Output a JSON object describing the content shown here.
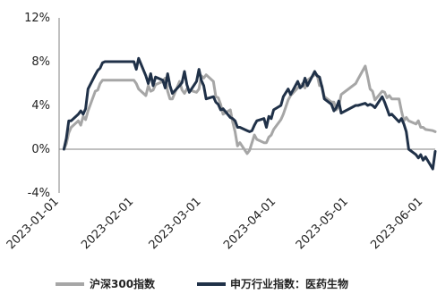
{
  "chart_data": {
    "type": "line",
    "title": "",
    "xlabel": "",
    "ylabel": "",
    "xlim": [
      "2023-01-01",
      "2023-06-06"
    ],
    "ylim": [
      -4,
      12
    ],
    "yticks": [
      -4,
      0,
      4,
      8,
      12
    ],
    "ytick_labels": [
      "-4%",
      "0%",
      "4%",
      "8%",
      "12%"
    ],
    "xticks": [
      "2023-01-01",
      "2023-02-01",
      "2023-03-01",
      "2023-04-01",
      "2023-05-01",
      "2023-06-01"
    ],
    "xtick_labels": [
      "2023-01-01",
      "2023-02-01",
      "2023-03-01",
      "2023-04-01",
      "2023-05-01",
      "2023-06-01"
    ],
    "grid": false,
    "legend_position": "bottom",
    "series": [
      {
        "name": "沪深300指数",
        "color": "#a6a6a6",
        "points": [
          [
            "2023-01-03",
            0.0
          ],
          [
            "2023-01-04",
            0.5
          ],
          [
            "2023-01-05",
            1.5
          ],
          [
            "2023-01-06",
            2.0
          ],
          [
            "2023-01-09",
            2.6
          ],
          [
            "2023-01-10",
            2.2
          ],
          [
            "2023-01-11",
            3.0
          ],
          [
            "2023-01-12",
            2.7
          ],
          [
            "2023-01-13",
            3.5
          ],
          [
            "2023-01-16",
            5.3
          ],
          [
            "2023-01-17",
            5.4
          ],
          [
            "2023-01-18",
            6.0
          ],
          [
            "2023-01-19",
            6.3
          ],
          [
            "2023-01-20",
            6.3
          ],
          [
            "2023-01-30",
            6.3
          ],
          [
            "2023-01-31",
            6.3
          ],
          [
            "2023-02-01",
            6.3
          ],
          [
            "2023-02-02",
            6.0
          ],
          [
            "2023-02-03",
            5.5
          ],
          [
            "2023-02-06",
            4.9
          ],
          [
            "2023-02-07",
            5.8
          ],
          [
            "2023-02-08",
            5.3
          ],
          [
            "2023-02-09",
            5.4
          ],
          [
            "2023-02-10",
            5.9
          ],
          [
            "2023-02-13",
            6.2
          ],
          [
            "2023-02-14",
            6.5
          ],
          [
            "2023-02-15",
            5.3
          ],
          [
            "2023-02-16",
            4.6
          ],
          [
            "2023-02-17",
            4.6
          ],
          [
            "2023-02-20",
            6.2
          ],
          [
            "2023-02-21",
            5.4
          ],
          [
            "2023-02-22",
            5.1
          ],
          [
            "2023-02-23",
            5.5
          ],
          [
            "2023-02-24",
            5.4
          ],
          [
            "2023-02-27",
            5.2
          ],
          [
            "2023-02-28",
            5.5
          ],
          [
            "2023-03-01",
            6.7
          ],
          [
            "2023-03-02",
            6.5
          ],
          [
            "2023-03-03",
            6.8
          ],
          [
            "2023-03-06",
            6.2
          ],
          [
            "2023-03-07",
            4.8
          ],
          [
            "2023-03-08",
            4.7
          ],
          [
            "2023-03-09",
            4.1
          ],
          [
            "2023-03-10",
            3.2
          ],
          [
            "2023-03-13",
            3.6
          ],
          [
            "2023-03-14",
            2.5
          ],
          [
            "2023-03-15",
            1.6
          ],
          [
            "2023-03-16",
            0.3
          ],
          [
            "2023-03-17",
            0.6
          ],
          [
            "2023-03-20",
            -0.4
          ],
          [
            "2023-03-21",
            -0.1
          ],
          [
            "2023-03-22",
            0.6
          ],
          [
            "2023-03-23",
            1.3
          ],
          [
            "2023-03-24",
            0.9
          ],
          [
            "2023-03-27",
            0.6
          ],
          [
            "2023-03-28",
            0.6
          ],
          [
            "2023-03-29",
            1.1
          ],
          [
            "2023-03-30",
            1.3
          ],
          [
            "2023-03-31",
            1.8
          ],
          [
            "2023-04-03",
            2.7
          ],
          [
            "2023-04-04",
            3.2
          ],
          [
            "2023-04-06",
            4.5
          ],
          [
            "2023-04-07",
            4.9
          ],
          [
            "2023-04-10",
            5.6
          ],
          [
            "2023-04-11",
            5.8
          ],
          [
            "2023-04-12",
            6.0
          ],
          [
            "2023-04-13",
            5.6
          ],
          [
            "2023-04-14",
            6.3
          ],
          [
            "2023-04-17",
            6.8
          ],
          [
            "2023-04-18",
            6.8
          ],
          [
            "2023-04-19",
            5.8
          ],
          [
            "2023-04-20",
            5.8
          ],
          [
            "2023-04-21",
            4.8
          ],
          [
            "2023-04-24",
            4.3
          ],
          [
            "2023-04-25",
            4.3
          ],
          [
            "2023-04-26",
            3.6
          ],
          [
            "2023-04-27",
            3.9
          ],
          [
            "2023-04-28",
            5.0
          ],
          [
            "2023-05-04",
            6.0
          ],
          [
            "2023-05-05",
            6.4
          ],
          [
            "2023-05-08",
            7.6
          ],
          [
            "2023-05-09",
            6.6
          ],
          [
            "2023-05-10",
            5.5
          ],
          [
            "2023-05-11",
            5.3
          ],
          [
            "2023-05-12",
            4.5
          ],
          [
            "2023-05-15",
            5.3
          ],
          [
            "2023-05-16",
            5.2
          ],
          [
            "2023-05-17",
            4.7
          ],
          [
            "2023-05-18",
            4.9
          ],
          [
            "2023-05-19",
            4.6
          ],
          [
            "2023-05-22",
            4.6
          ],
          [
            "2023-05-23",
            3.5
          ],
          [
            "2023-05-24",
            2.6
          ],
          [
            "2023-05-25",
            2.9
          ],
          [
            "2023-05-26",
            2.6
          ],
          [
            "2023-05-29",
            2.3
          ],
          [
            "2023-05-30",
            2.6
          ],
          [
            "2023-05-31",
            2.0
          ],
          [
            "2023-06-01",
            2.0
          ],
          [
            "2023-06-02",
            1.8
          ],
          [
            "2023-06-05",
            1.7
          ],
          [
            "2023-06-06",
            1.6
          ]
        ]
      },
      {
        "name": "申万行业指数：医药生物",
        "color": "#203148",
        "points": [
          [
            "2023-01-03",
            0.0
          ],
          [
            "2023-01-04",
            1.0
          ],
          [
            "2023-01-05",
            2.6
          ],
          [
            "2023-01-06",
            2.6
          ],
          [
            "2023-01-09",
            3.2
          ],
          [
            "2023-01-10",
            3.5
          ],
          [
            "2023-01-11",
            3.2
          ],
          [
            "2023-01-12",
            3.7
          ],
          [
            "2023-01-13",
            5.5
          ],
          [
            "2023-01-16",
            6.8
          ],
          [
            "2023-01-17",
            7.2
          ],
          [
            "2023-01-18",
            7.4
          ],
          [
            "2023-01-19",
            7.9
          ],
          [
            "2023-01-20",
            8.0
          ],
          [
            "2023-01-30",
            8.0
          ],
          [
            "2023-01-31",
            8.0
          ],
          [
            "2023-02-01",
            8.0
          ],
          [
            "2023-02-02",
            7.3
          ],
          [
            "2023-02-03",
            8.3
          ],
          [
            "2023-02-06",
            6.7
          ],
          [
            "2023-02-07",
            6.0
          ],
          [
            "2023-02-08",
            6.9
          ],
          [
            "2023-02-09",
            5.8
          ],
          [
            "2023-02-10",
            6.6
          ],
          [
            "2023-02-13",
            6.3
          ],
          [
            "2023-02-14",
            5.6
          ],
          [
            "2023-02-15",
            6.9
          ],
          [
            "2023-02-16",
            5.8
          ],
          [
            "2023-02-17",
            5.1
          ],
          [
            "2023-02-20",
            5.8
          ],
          [
            "2023-02-21",
            6.1
          ],
          [
            "2023-02-22",
            7.1
          ],
          [
            "2023-02-23",
            5.9
          ],
          [
            "2023-02-24",
            5.2
          ],
          [
            "2023-02-27",
            6.2
          ],
          [
            "2023-02-28",
            7.3
          ],
          [
            "2023-03-01",
            6.3
          ],
          [
            "2023-03-02",
            5.8
          ],
          [
            "2023-03-03",
            4.6
          ],
          [
            "2023-03-06",
            4.8
          ],
          [
            "2023-03-07",
            4.3
          ],
          [
            "2023-03-08",
            4.1
          ],
          [
            "2023-03-09",
            3.6
          ],
          [
            "2023-03-10",
            3.7
          ],
          [
            "2023-03-13",
            2.9
          ],
          [
            "2023-03-14",
            2.8
          ],
          [
            "2023-03-15",
            2.6
          ],
          [
            "2023-03-16",
            2.0
          ],
          [
            "2023-03-17",
            2.0
          ],
          [
            "2023-03-20",
            1.7
          ],
          [
            "2023-03-21",
            1.6
          ],
          [
            "2023-03-22",
            1.7
          ],
          [
            "2023-03-23",
            2.2
          ],
          [
            "2023-03-24",
            2.6
          ],
          [
            "2023-03-27",
            2.8
          ],
          [
            "2023-03-28",
            2.0
          ],
          [
            "2023-03-29",
            3.0
          ],
          [
            "2023-03-30",
            2.8
          ],
          [
            "2023-03-31",
            3.6
          ],
          [
            "2023-04-03",
            4.0
          ],
          [
            "2023-04-04",
            4.8
          ],
          [
            "2023-04-06",
            5.5
          ],
          [
            "2023-04-07",
            5.0
          ],
          [
            "2023-04-10",
            6.2
          ],
          [
            "2023-04-11",
            5.6
          ],
          [
            "2023-04-12",
            5.8
          ],
          [
            "2023-04-13",
            6.5
          ],
          [
            "2023-04-14",
            5.8
          ],
          [
            "2023-04-17",
            7.1
          ],
          [
            "2023-04-18",
            6.7
          ],
          [
            "2023-04-19",
            6.6
          ],
          [
            "2023-04-20",
            5.7
          ],
          [
            "2023-04-21",
            4.6
          ],
          [
            "2023-04-24",
            4.1
          ],
          [
            "2023-04-25",
            3.5
          ],
          [
            "2023-04-26",
            3.8
          ],
          [
            "2023-04-27",
            4.4
          ],
          [
            "2023-04-28",
            3.3
          ],
          [
            "2023-05-04",
            4.0
          ],
          [
            "2023-05-05",
            4.0
          ],
          [
            "2023-05-08",
            4.2
          ],
          [
            "2023-05-09",
            4.0
          ],
          [
            "2023-05-10",
            4.1
          ],
          [
            "2023-05-11",
            4.0
          ],
          [
            "2023-05-12",
            3.8
          ],
          [
            "2023-05-15",
            4.8
          ],
          [
            "2023-05-16",
            4.3
          ],
          [
            "2023-05-17",
            3.7
          ],
          [
            "2023-05-18",
            3.1
          ],
          [
            "2023-05-19",
            3.2
          ],
          [
            "2023-05-22",
            2.5
          ],
          [
            "2023-05-23",
            2.8
          ],
          [
            "2023-05-24",
            2.3
          ],
          [
            "2023-05-25",
            1.6
          ],
          [
            "2023-05-26",
            0.0
          ],
          [
            "2023-05-29",
            -0.5
          ],
          [
            "2023-05-30",
            -0.8
          ],
          [
            "2023-05-31",
            -0.5
          ],
          [
            "2023-06-01",
            -1.0
          ],
          [
            "2023-06-02",
            -0.7
          ],
          [
            "2023-06-05",
            -1.8
          ],
          [
            "2023-06-06",
            -0.2
          ]
        ]
      }
    ]
  }
}
